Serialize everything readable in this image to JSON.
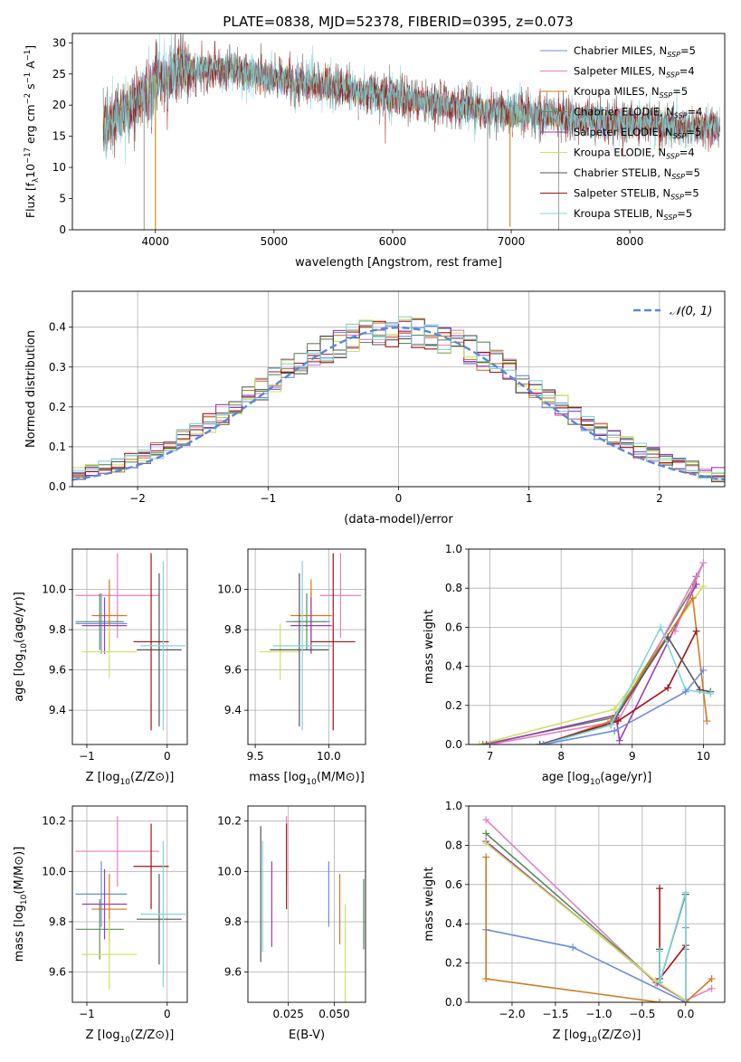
{
  "figure_title": "PLATE=0838, MJD=52378, FIBERID=0395, z=0.073",
  "legend_entries": [
    {
      "name": "Chabrier MILES, N_SSP=5",
      "pre": "Chabrier MILES, N",
      "sub": "SSP",
      "post": "=5",
      "color": "#6a8ede"
    },
    {
      "name": "Salpeter MILES, N_SSP=4",
      "pre": "Salpeter MILES, N",
      "sub": "SSP",
      "post": "=4",
      "color": "#e47fc1"
    },
    {
      "name": "Kroupa MILES, N_SSP=5",
      "pre": "Kroupa MILES, N",
      "sub": "SSP",
      "post": "=5",
      "color": "#d07a1f"
    },
    {
      "name": "Chabrier ELODIE, N_SSP=4",
      "pre": "Chabrier ELODIE, N",
      "sub": "SSP",
      "post": "=4",
      "color": "#5e8a5e"
    },
    {
      "name": "Salpeter ELODIE, N_SSP=5",
      "pre": "Salpeter ELODIE, N",
      "sub": "SSP",
      "post": "=5",
      "color": "#9b3db5"
    },
    {
      "name": "Kroupa ELODIE, N_SSP=4",
      "pre": "Kroupa ELODIE, N",
      "sub": "SSP",
      "post": "=4",
      "color": "#cde35a"
    },
    {
      "name": "Chabrier STELIB, N_SSP=5",
      "pre": "Chabrier STELIB, N",
      "sub": "SSP",
      "post": "=5",
      "color": "#555555"
    },
    {
      "name": "Salpeter STELIB, N_SSP=5",
      "pre": "Salpeter STELIB, N",
      "sub": "SSP",
      "post": "=5",
      "color": "#a31515"
    },
    {
      "name": "Kroupa STELIB, N_SSP=5",
      "pre": "Kroupa STELIB, N",
      "sub": "SSP",
      "post": "=5",
      "color": "#7fd6d8"
    }
  ],
  "chart_data": [
    {
      "id": "spectrum",
      "type": "line",
      "xlabel": "wavelength [Angstrom, rest frame]",
      "ylabel": "Flux [f_λ 10^-17 erg cm^-2 s^-1 A^-1]",
      "ylabel_parts": {
        "a": "Flux [f",
        "b": "λ",
        "c": "10",
        "d": "−17",
        "e": " erg cm",
        "f": "−2",
        "g": " s",
        "h": "−1",
        "i": " A",
        "j": "−1",
        "k": "]"
      },
      "xlim": [
        3300,
        8800
      ],
      "ylim": [
        0,
        31.5
      ],
      "xticks": [
        4000,
        5000,
        6000,
        7000,
        8000
      ],
      "yticks": [
        0,
        5,
        10,
        15,
        20,
        25,
        30
      ],
      "continuum": [
        [
          3560,
          16.2
        ],
        [
          3700,
          18.5
        ],
        [
          3900,
          22.0
        ],
        [
          4000,
          24.2
        ],
        [
          4200,
          25.6
        ],
        [
          4500,
          26.0
        ],
        [
          5000,
          24.3
        ],
        [
          5500,
          23.0
        ],
        [
          6000,
          21.3
        ],
        [
          6500,
          20.0
        ],
        [
          6800,
          19.2
        ],
        [
          7000,
          18.6
        ],
        [
          7500,
          17.8
        ],
        [
          8000,
          17.3
        ],
        [
          8500,
          16.5
        ],
        [
          8760,
          16.6
        ]
      ],
      "absorption_dips": [
        [
          3934,
          4.0
        ],
        [
          3969,
          5.0
        ],
        [
          4102,
          3.5
        ],
        [
          4340,
          3.0
        ],
        [
          5175,
          3.0
        ],
        [
          5890,
          2.5
        ],
        [
          6563,
          2.0
        ]
      ],
      "gaps": [
        [
          3905,
          0
        ],
        [
          4000,
          0
        ],
        [
          6800,
          0
        ],
        [
          6990,
          0.5
        ],
        [
          7400,
          0
        ]
      ]
    },
    {
      "id": "residuals",
      "type": "histogram",
      "xlabel": "(data-model)/error",
      "ylabel": "Normed distribution",
      "xlim": [
        -2.5,
        2.5
      ],
      "ylim": [
        0,
        0.49
      ],
      "xticks": [
        -2,
        -1,
        0,
        1,
        2
      ],
      "yticks": [
        0.0,
        0.1,
        0.2,
        0.3,
        0.4
      ],
      "bin_width": 0.1,
      "reference": {
        "label": "N(0,1)",
        "mu": 0,
        "sigma": 1,
        "color": "#5b86d6"
      }
    },
    {
      "id": "age_vs_Z",
      "type": "scatter",
      "xlabel_pre": "Z [log",
      "xlabel_sub": "10",
      "xlabel_post": "(Z/Z⊙)]",
      "ylabel_pre": "age  [log",
      "ylabel_sub": "10",
      "ylabel_post": "(age/yr)]",
      "xlim": [
        -1.18,
        0.25
      ],
      "ylim": [
        9.23,
        10.2
      ],
      "xticks": [
        -1,
        0
      ],
      "yticks": [
        9.4,
        9.6,
        9.8,
        10.0
      ],
      "points": [
        {
          "series": "Chabrier MILES",
          "x": -0.82,
          "xerr": 0.32,
          "y": 9.83,
          "yerr": 0.15
        },
        {
          "series": "Salpeter MILES",
          "x": -0.62,
          "xerr": 0.52,
          "y": 9.97,
          "yerr": 0.21
        },
        {
          "series": "Kroupa MILES",
          "x": -0.72,
          "xerr": 0.22,
          "y": 9.87,
          "yerr": 0.18
        },
        {
          "series": "Chabrier ELODIE",
          "x": -0.84,
          "xerr": 0.3,
          "y": 9.84,
          "yerr": 0.14
        },
        {
          "series": "Salpeter ELODIE",
          "x": -0.78,
          "xerr": 0.28,
          "y": 9.82,
          "yerr": 0.14
        },
        {
          "series": "Kroupa ELODIE",
          "x": -0.72,
          "xerr": 0.34,
          "y": 9.69,
          "yerr": 0.13
        },
        {
          "series": "Chabrier STELIB",
          "x": -0.1,
          "xerr": 0.28,
          "y": 9.7,
          "yerr": 0.38
        },
        {
          "series": "Salpeter STELIB",
          "x": -0.2,
          "xerr": 0.22,
          "y": 9.74,
          "yerr": 0.44
        },
        {
          "series": "Kroupa STELIB",
          "x": -0.05,
          "xerr": 0.28,
          "y": 9.72,
          "yerr": 0.42
        }
      ]
    },
    {
      "id": "age_vs_mass",
      "type": "scatter",
      "xlabel_pre": "mass [log",
      "xlabel_sub": "10",
      "xlabel_post": "(M/M⊙)]",
      "xlim": [
        9.45,
        10.25
      ],
      "ylim": [
        9.23,
        10.2
      ],
      "xticks": [
        9.5,
        10.0
      ],
      "yticks": [
        9.4,
        9.6,
        9.8,
        10.0
      ],
      "points": [
        {
          "series": "Chabrier MILES",
          "x": 9.88,
          "xerr": 0.13,
          "y": 9.84,
          "yerr": 0.15
        },
        {
          "series": "Salpeter MILES",
          "x": 10.08,
          "xerr": 0.14,
          "y": 9.97,
          "yerr": 0.21
        },
        {
          "series": "Kroupa MILES",
          "x": 9.88,
          "xerr": 0.14,
          "y": 9.87,
          "yerr": 0.18
        },
        {
          "series": "Chabrier ELODIE",
          "x": 9.85,
          "xerr": 0.14,
          "y": 9.84,
          "yerr": 0.14
        },
        {
          "series": "Salpeter ELODIE",
          "x": 9.88,
          "xerr": 0.14,
          "y": 9.82,
          "yerr": 0.14
        },
        {
          "series": "Kroupa ELODIE",
          "x": 9.67,
          "xerr": 0.14,
          "y": 9.69,
          "yerr": 0.14
        },
        {
          "series": "Chabrier STELIB",
          "x": 9.8,
          "xerr": 0.2,
          "y": 9.7,
          "yerr": 0.38
        },
        {
          "series": "Salpeter STELIB",
          "x": 10.03,
          "xerr": 0.15,
          "y": 9.74,
          "yerr": 0.44
        },
        {
          "series": "Kroupa STELIB",
          "x": 9.82,
          "xerr": 0.2,
          "y": 9.72,
          "yerr": 0.42
        }
      ]
    },
    {
      "id": "mass_weight_vs_age",
      "type": "line",
      "xlabel_pre": "age  [log",
      "xlabel_sub": "10",
      "xlabel_post": "(age/yr)]",
      "ylabel": "mass weight",
      "xlim": [
        6.7,
        10.3
      ],
      "ylim": [
        0,
        1.0
      ],
      "xticks": [
        7,
        8,
        9,
        10
      ],
      "yticks": [
        0.0,
        0.2,
        0.4,
        0.6,
        0.8,
        1.0
      ],
      "series": [
        {
          "name": "Kroupa ELODIE",
          "x": [
            6.85,
            8.75,
            10.0
          ],
          "y": [
            0.0,
            0.18,
            0.81
          ]
        },
        {
          "name": "Chabrier ELODIE",
          "x": [
            6.9,
            8.77,
            9.85,
            9.9
          ],
          "y": [
            0.0,
            0.14,
            0.8,
            0.86
          ]
        },
        {
          "name": "Salpeter ELODIE",
          "x": [
            6.95,
            8.77,
            8.82,
            9.9
          ],
          "y": [
            0.0,
            0.15,
            0.02,
            0.82
          ]
        },
        {
          "name": "Salpeter MILES",
          "x": [
            7.0,
            8.8,
            10.0,
            9.6
          ],
          "y": [
            0.0,
            0.12,
            0.93,
            0.58
          ]
        },
        {
          "name": "Kroupa MILES",
          "x": [
            7.75,
            8.7,
            9.85,
            10.05
          ],
          "y": [
            0.0,
            0.12,
            0.75,
            0.12
          ]
        },
        {
          "name": "Salpeter STELIB",
          "x": [
            7.7,
            8.8,
            9.5,
            9.9
          ],
          "y": [
            0.0,
            0.12,
            0.29,
            0.58
          ]
        },
        {
          "name": "Chabrier STELIB",
          "x": [
            7.7,
            8.7,
            9.5,
            9.95,
            10.1
          ],
          "y": [
            0.0,
            0.1,
            0.55,
            0.28,
            0.27
          ]
        },
        {
          "name": "Kroupa STELIB",
          "x": [
            7.75,
            8.7,
            9.4,
            9.75,
            10.1
          ],
          "y": [
            0.0,
            0.1,
            0.6,
            0.28,
            0.26
          ]
        },
        {
          "name": "Chabrier MILES",
          "x": [
            7.75,
            8.75,
            9.75,
            10.0
          ],
          "y": [
            0.0,
            0.07,
            0.27,
            0.38
          ]
        }
      ]
    },
    {
      "id": "mass_vs_Z",
      "type": "scatter",
      "xlabel_pre": "Z [log",
      "xlabel_sub": "10",
      "xlabel_post": "(Z/Z⊙)]",
      "ylabel_pre": "mass [log",
      "ylabel_sub": "10",
      "ylabel_post": "(M/M⊙)]",
      "xlim": [
        -1.18,
        0.25
      ],
      "ylim": [
        9.48,
        10.26
      ],
      "xticks": [
        -1,
        0
      ],
      "yticks": [
        9.6,
        9.8,
        10.0,
        10.2
      ],
      "points": [
        {
          "series": "Chabrier MILES",
          "x": -0.82,
          "xerr": 0.32,
          "y": 9.91,
          "yerr": 0.13
        },
        {
          "series": "Salpeter MILES",
          "x": -0.62,
          "xerr": 0.52,
          "y": 10.08,
          "yerr": 0.14
        },
        {
          "series": "Kroupa MILES",
          "x": -0.72,
          "xerr": 0.22,
          "y": 9.85,
          "yerr": 0.14
        },
        {
          "series": "Chabrier ELODIE",
          "x": -0.84,
          "xerr": 0.3,
          "y": 9.77,
          "yerr": 0.12
        },
        {
          "series": "Salpeter ELODIE",
          "x": -0.78,
          "xerr": 0.28,
          "y": 9.87,
          "yerr": 0.14
        },
        {
          "series": "Kroupa ELODIE",
          "x": -0.72,
          "xerr": 0.34,
          "y": 9.67,
          "yerr": 0.14
        },
        {
          "series": "Chabrier STELIB",
          "x": -0.1,
          "xerr": 0.28,
          "y": 9.81,
          "yerr": 0.18
        },
        {
          "series": "Salpeter STELIB",
          "x": -0.2,
          "xerr": 0.22,
          "y": 10.02,
          "yerr": 0.17
        },
        {
          "series": "Kroupa STELIB",
          "x": -0.05,
          "xerr": 0.28,
          "y": 9.83,
          "yerr": 0.29
        }
      ]
    },
    {
      "id": "mass_vs_EBV",
      "type": "scatter",
      "xlabel": "E(B-V)",
      "xlim": [
        0.003,
        0.067
      ],
      "ylim": [
        9.48,
        10.26
      ],
      "xticks": [
        0.025,
        0.05
      ],
      "xticklabels": [
        "0.025",
        "0.050"
      ],
      "yticks": [
        9.6,
        9.8,
        10.0,
        10.2
      ],
      "points": [
        {
          "series": "Chabrier MILES",
          "x": 0.047,
          "y": 9.91,
          "yerr": 0.13
        },
        {
          "series": "Salpeter MILES",
          "x": 0.024,
          "y": 10.08,
          "yerr": 0.14
        },
        {
          "series": "Kroupa MILES",
          "x": 0.053,
          "y": 9.85,
          "yerr": 0.14
        },
        {
          "series": "Chabrier ELODIE",
          "x": 0.066,
          "y": 9.83,
          "yerr": 0.14
        },
        {
          "series": "Salpeter ELODIE",
          "x": 0.016,
          "y": 9.87,
          "yerr": 0.17
        },
        {
          "series": "Kroupa ELODIE",
          "x": 0.056,
          "y": 9.67,
          "yerr": 0.2
        },
        {
          "series": "Chabrier STELIB",
          "x": 0.01,
          "y": 9.91,
          "yerr": 0.27
        },
        {
          "series": "Salpeter STELIB",
          "x": 0.024,
          "y": 10.02,
          "yerr": 0.17
        },
        {
          "series": "Kroupa STELIB",
          "x": 0.011,
          "y": 9.9,
          "yerr": 0.22
        }
      ]
    },
    {
      "id": "mass_weight_vs_Z",
      "type": "line",
      "xlabel_pre": "Z [log",
      "xlabel_sub": "10",
      "xlabel_post": "(Z/Z⊙)]",
      "ylabel": "mass weight",
      "xlim": [
        -2.5,
        0.45
      ],
      "ylim": [
        0,
        1.0
      ],
      "xticks": [
        -2.0,
        -1.5,
        -1.0,
        -0.5,
        0.0
      ],
      "xticklabels": [
        "−2.0",
        "−1.5",
        "−1.0",
        "−0.5",
        "0.0"
      ],
      "yticks": [
        0.0,
        0.2,
        0.4,
        0.6,
        0.8,
        1.0
      ],
      "series": [
        {
          "name": "Salpeter MILES",
          "x": [
            -2.3,
            -0.35,
            0.0,
            0.3
          ],
          "y": [
            0.93,
            0.1,
            0.01,
            0.07
          ]
        },
        {
          "name": "Chabrier ELODIE",
          "x": [
            -2.3,
            -0.33,
            0.0
          ],
          "y": [
            0.86,
            0.1,
            0.01
          ]
        },
        {
          "name": "Salpeter ELODIE",
          "x": [
            -2.3,
            -0.33,
            0.0
          ],
          "y": [
            0.82,
            0.1,
            0.01
          ]
        },
        {
          "name": "Kroupa ELODIE",
          "x": [
            -2.3,
            -0.35,
            0.0
          ],
          "y": [
            0.81,
            0.11,
            0.01
          ]
        },
        {
          "name": "Chabrier MILES",
          "x": [
            -2.3,
            -1.3,
            0.0,
            0.0,
            0.0
          ],
          "y": [
            0.37,
            0.28,
            0.0,
            0.27,
            0.38
          ]
        },
        {
          "name": "Kroupa MILES",
          "x": [
            -2.3,
            -2.3,
            -0.3,
            0.0,
            0.3
          ],
          "y": [
            0.74,
            0.12,
            0.0,
            0.0,
            0.12
          ]
        },
        {
          "name": "Salpeter STELIB",
          "x": [
            -0.3,
            -0.3,
            0.0,
            0.0
          ],
          "y": [
            0.58,
            0.12,
            0.29,
            0.0
          ]
        },
        {
          "name": "Chabrier STELIB",
          "x": [
            -0.3,
            -0.3,
            0.0,
            0.0
          ],
          "y": [
            0.27,
            0.1,
            0.55,
            0.0
          ]
        },
        {
          "name": "Kroupa STELIB",
          "x": [
            -0.3,
            -0.3,
            0.0,
            0.0
          ],
          "y": [
            0.26,
            0.1,
            0.56,
            0.0
          ]
        }
      ]
    }
  ]
}
